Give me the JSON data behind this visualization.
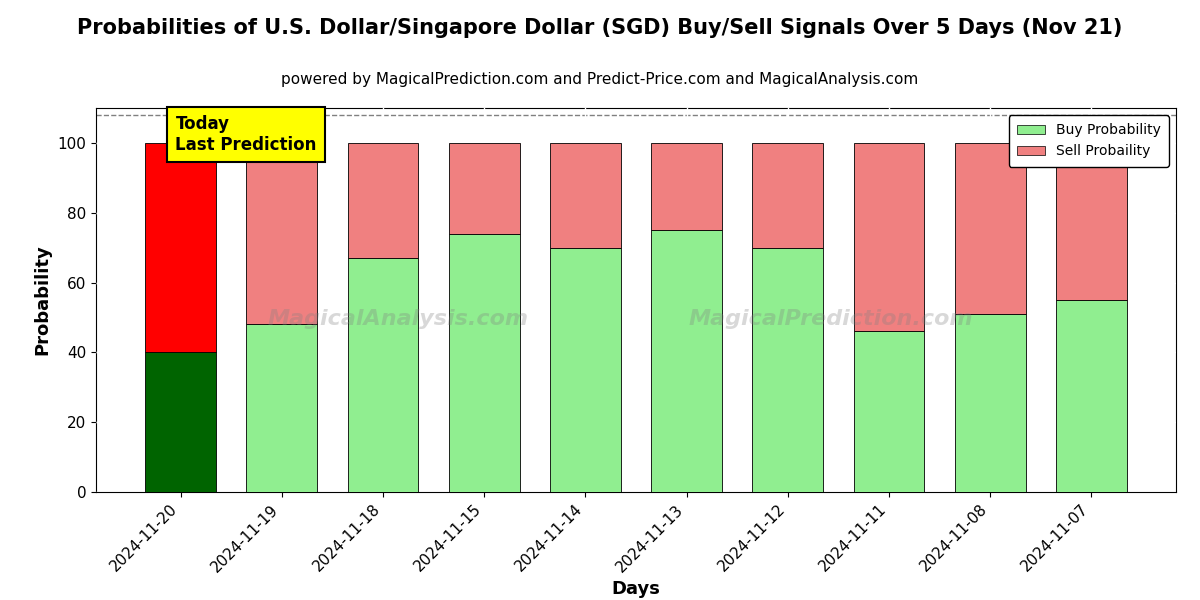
{
  "title": "Probabilities of U.S. Dollar/Singapore Dollar (SGD) Buy/Sell Signals Over 5 Days (Nov 21)",
  "subtitle": "powered by MagicalPrediction.com and Predict-Price.com and MagicalAnalysis.com",
  "xlabel": "Days",
  "ylabel": "Probability",
  "categories": [
    "2024-11-20",
    "2024-11-19",
    "2024-11-18",
    "2024-11-15",
    "2024-11-14",
    "2024-11-13",
    "2024-11-12",
    "2024-11-11",
    "2024-11-08",
    "2024-11-07"
  ],
  "buy_values": [
    40,
    48,
    67,
    74,
    70,
    75,
    70,
    46,
    51,
    55
  ],
  "sell_values": [
    60,
    52,
    33,
    26,
    30,
    25,
    30,
    54,
    49,
    45
  ],
  "today_buy_color": "#006400",
  "today_sell_color": "#FF0000",
  "buy_color": "#90EE90",
  "sell_color": "#F08080",
  "today_label_bg": "#FFFF00",
  "today_label_text": "Today\nLast Prediction",
  "legend_buy": "Buy Probability",
  "legend_sell": "Sell Probaility",
  "ylim": [
    0,
    110
  ],
  "yticks": [
    0,
    20,
    40,
    60,
    80,
    100
  ],
  "watermark1": "MagicalAnalysis.com",
  "watermark2": "MagicalPrediction.com",
  "dashed_line_y": 108,
  "title_fontsize": 15,
  "subtitle_fontsize": 11,
  "axis_label_fontsize": 13,
  "tick_fontsize": 11,
  "bar_width": 0.7
}
